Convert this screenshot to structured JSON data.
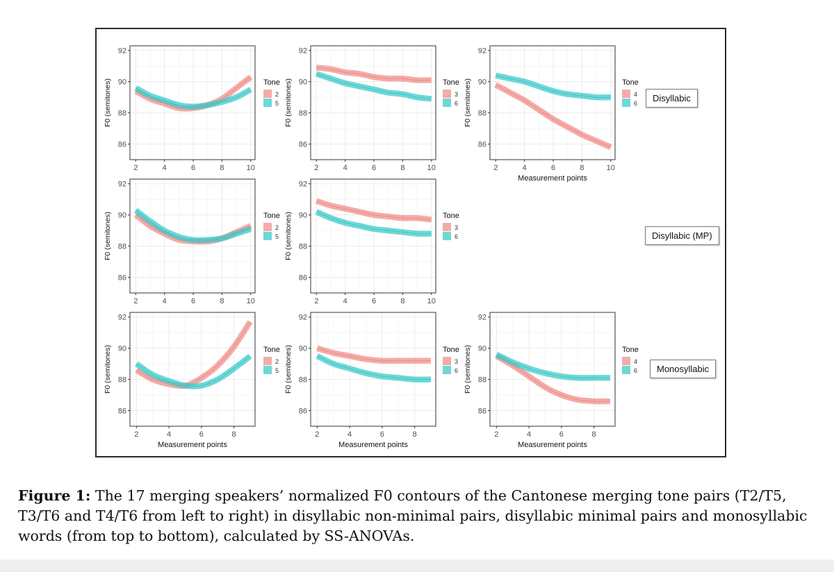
{
  "chart_data": [
    {
      "type": "line",
      "row": "Disyllabic",
      "title": "",
      "xlabel": "",
      "ylabel": "F0 (semitones)",
      "xlim": [
        1.6,
        10.3
      ],
      "ylim": [
        85,
        92.3
      ],
      "xticks": [
        2,
        4,
        6,
        8,
        10
      ],
      "yticks": [
        86,
        88,
        90,
        92
      ],
      "legend_title": "Tone",
      "series": [
        {
          "name": "2",
          "color": "#F08A85",
          "x": [
            2,
            3,
            4,
            5,
            6,
            7,
            8,
            9,
            10
          ],
          "values": [
            89.4,
            88.9,
            88.6,
            88.3,
            88.3,
            88.5,
            88.9,
            89.6,
            90.3
          ]
        },
        {
          "name": "5",
          "color": "#37C8C8",
          "x": [
            2,
            3,
            4,
            5,
            6,
            7,
            8,
            9,
            10
          ],
          "values": [
            89.6,
            89.1,
            88.8,
            88.5,
            88.4,
            88.5,
            88.7,
            89.0,
            89.5
          ]
        }
      ]
    },
    {
      "type": "line",
      "row": "Disyllabic",
      "title": "",
      "xlabel": "",
      "ylabel": "F0 (semitones)",
      "xlim": [
        1.6,
        10.3
      ],
      "ylim": [
        85,
        92.3
      ],
      "xticks": [
        2,
        4,
        6,
        8,
        10
      ],
      "yticks": [
        86,
        88,
        90,
        92
      ],
      "legend_title": "Tone",
      "series": [
        {
          "name": "3",
          "color": "#F08A85",
          "x": [
            2,
            3,
            4,
            5,
            6,
            7,
            8,
            9,
            10
          ],
          "values": [
            90.9,
            90.8,
            90.6,
            90.5,
            90.3,
            90.2,
            90.2,
            90.1,
            90.1
          ]
        },
        {
          "name": "6",
          "color": "#37C8C8",
          "x": [
            2,
            3,
            4,
            5,
            6,
            7,
            8,
            9,
            10
          ],
          "values": [
            90.5,
            90.2,
            89.9,
            89.7,
            89.5,
            89.3,
            89.2,
            89.0,
            88.9
          ]
        }
      ]
    },
    {
      "type": "line",
      "row": "Disyllabic",
      "title": "",
      "xlabel": "Measurement points",
      "ylabel": "F0 (semitones)",
      "xlim": [
        1.6,
        10.3
      ],
      "ylim": [
        85,
        92.3
      ],
      "xticks": [
        2,
        4,
        6,
        8,
        10
      ],
      "yticks": [
        86,
        88,
        90,
        92
      ],
      "legend_title": "Tone",
      "series": [
        {
          "name": "4",
          "color": "#F08A85",
          "x": [
            2,
            3,
            4,
            5,
            6,
            7,
            8,
            9,
            10
          ],
          "values": [
            89.8,
            89.3,
            88.8,
            88.2,
            87.6,
            87.1,
            86.6,
            86.2,
            85.8
          ]
        },
        {
          "name": "6",
          "color": "#37C8C8",
          "x": [
            2,
            3,
            4,
            5,
            6,
            7,
            8,
            9,
            10
          ],
          "values": [
            90.4,
            90.2,
            90.0,
            89.7,
            89.4,
            89.2,
            89.1,
            89.0,
            89.0
          ]
        }
      ]
    },
    {
      "type": "line",
      "row": "Disyllabic (MP)",
      "title": "",
      "xlabel": "",
      "ylabel": "F0 (semitones)",
      "xlim": [
        1.6,
        10.3
      ],
      "ylim": [
        85,
        92.3
      ],
      "xticks": [
        2,
        4,
        6,
        8,
        10
      ],
      "yticks": [
        86,
        88,
        90,
        92
      ],
      "legend_title": "Tone",
      "series": [
        {
          "name": "2",
          "color": "#F08A85",
          "x": [
            2,
            3,
            4,
            5,
            6,
            7,
            8,
            9,
            10
          ],
          "values": [
            90.0,
            89.3,
            88.8,
            88.4,
            88.3,
            88.3,
            88.5,
            88.9,
            89.3
          ]
        },
        {
          "name": "5",
          "color": "#37C8C8",
          "x": [
            2,
            3,
            4,
            5,
            6,
            7,
            8,
            9,
            10
          ],
          "values": [
            90.3,
            89.6,
            89.0,
            88.6,
            88.4,
            88.4,
            88.5,
            88.8,
            89.1
          ]
        }
      ]
    },
    {
      "type": "line",
      "row": "Disyllabic (MP)",
      "title": "",
      "xlabel": "",
      "ylabel": "F0 (semitones)",
      "xlim": [
        1.6,
        10.3
      ],
      "ylim": [
        85,
        92.3
      ],
      "xticks": [
        2,
        4,
        6,
        8,
        10
      ],
      "yticks": [
        86,
        88,
        90,
        92
      ],
      "legend_title": "Tone",
      "series": [
        {
          "name": "3",
          "color": "#F08A85",
          "x": [
            2,
            3,
            4,
            5,
            6,
            7,
            8,
            9,
            10
          ],
          "values": [
            90.9,
            90.6,
            90.4,
            90.2,
            90.0,
            89.9,
            89.8,
            89.8,
            89.7
          ]
        },
        {
          "name": "6",
          "color": "#37C8C8",
          "x": [
            2,
            3,
            4,
            5,
            6,
            7,
            8,
            9,
            10
          ],
          "values": [
            90.2,
            89.8,
            89.5,
            89.3,
            89.1,
            89.0,
            88.9,
            88.8,
            88.8
          ]
        }
      ]
    },
    {
      "type": "line",
      "row": "Monosyllabic",
      "title": "",
      "xlabel": "Measurement points",
      "ylabel": "F0 (semitones)",
      "xlim": [
        1.6,
        9.3
      ],
      "ylim": [
        85,
        92.3
      ],
      "xticks": [
        2,
        4,
        6,
        8
      ],
      "yticks": [
        86,
        88,
        90,
        92
      ],
      "legend_title": "Tone",
      "series": [
        {
          "name": "2",
          "color": "#F08A85",
          "x": [
            2,
            3,
            4,
            5,
            6,
            7,
            8,
            9
          ],
          "values": [
            88.6,
            88.0,
            87.7,
            87.6,
            88.1,
            88.9,
            90.1,
            91.7
          ]
        },
        {
          "name": "5",
          "color": "#37C8C8",
          "x": [
            2,
            3,
            4,
            5,
            6,
            7,
            8,
            9
          ],
          "values": [
            89.0,
            88.3,
            87.9,
            87.6,
            87.6,
            88.0,
            88.7,
            89.5
          ]
        }
      ]
    },
    {
      "type": "line",
      "row": "Monosyllabic",
      "title": "",
      "xlabel": "Measurement points",
      "ylabel": "F0 (semitones)",
      "xlim": [
        1.6,
        9.3
      ],
      "ylim": [
        85,
        92.3
      ],
      "xticks": [
        2,
        4,
        6,
        8
      ],
      "yticks": [
        86,
        88,
        90,
        92
      ],
      "legend_title": "Tone",
      "series": [
        {
          "name": "3",
          "color": "#F08A85",
          "x": [
            2,
            3,
            4,
            5,
            6,
            7,
            8,
            9
          ],
          "values": [
            90.0,
            89.7,
            89.5,
            89.3,
            89.2,
            89.2,
            89.2,
            89.2
          ]
        },
        {
          "name": "6",
          "color": "#37C8C8",
          "x": [
            2,
            3,
            4,
            5,
            6,
            7,
            8,
            9
          ],
          "values": [
            89.5,
            89.0,
            88.7,
            88.4,
            88.2,
            88.1,
            88.0,
            88.0
          ]
        }
      ]
    },
    {
      "type": "line",
      "row": "Monosyllabic",
      "title": "",
      "xlabel": "Measurement points",
      "ylabel": "F0 (semitones)",
      "xlim": [
        1.6,
        9.3
      ],
      "ylim": [
        85,
        92.3
      ],
      "xticks": [
        2,
        4,
        6,
        8
      ],
      "yticks": [
        86,
        88,
        90,
        92
      ],
      "legend_title": "Tone",
      "series": [
        {
          "name": "4",
          "color": "#F08A85",
          "x": [
            2,
            3,
            4,
            5,
            6,
            7,
            8,
            9
          ],
          "values": [
            89.5,
            88.9,
            88.2,
            87.5,
            87.0,
            86.7,
            86.6,
            86.6
          ]
        },
        {
          "name": "6",
          "color": "#37C8C8",
          "x": [
            2,
            3,
            4,
            5,
            6,
            7,
            8,
            9
          ],
          "values": [
            89.6,
            89.1,
            88.7,
            88.4,
            88.2,
            88.1,
            88.1,
            88.1
          ]
        }
      ]
    }
  ],
  "row_labels": {
    "disyllabic": "Disyllabic",
    "disyllabic_mp": "Disyllabic (MP)",
    "monosyllabic": "Monosyllabic"
  },
  "caption": {
    "label": "Figure 1:",
    "text": " The 17 merging speakers’ normalized F0 contours of the Cantonese merging tone pairs (T2/T5, T3/T6 and T4/T6 from left to right) in disyllabic non-minimal pairs, disyllabic minimal pairs and monosyllabic words (from top to bottom), calculated by SS-ANOVAs."
  },
  "colors": {
    "tone_a": "#F08A85",
    "tone_b": "#37C8C8",
    "grid": "#EBEBEB"
  }
}
